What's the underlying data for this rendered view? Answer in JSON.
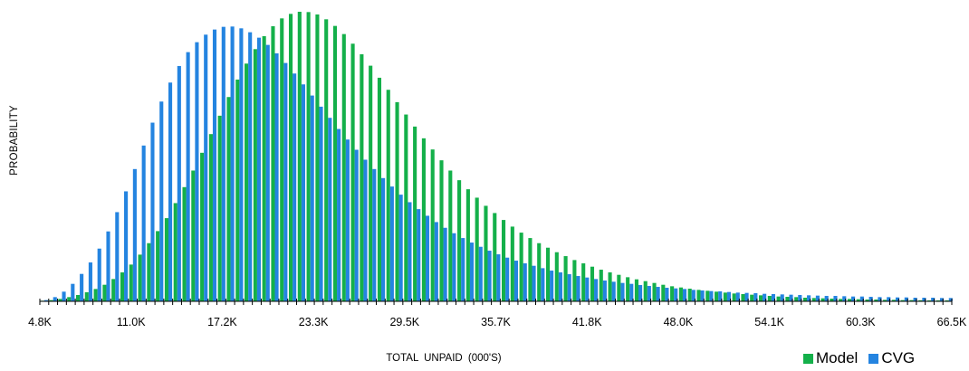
{
  "chart_data": {
    "type": "bar",
    "xlabel": "TOTAL UNPAID (000'S)",
    "ylabel": "PROBABILITY",
    "tick_labels": [
      "4.8K",
      "11.0K",
      "17.2K",
      "23.3K",
      "29.5K",
      "35.7K",
      "41.8K",
      "48.0K",
      "54.1K",
      "60.3K",
      "66.5K"
    ],
    "xlim": [
      4.8,
      66.5
    ],
    "bin_width": 0.6,
    "legend_position": "bottom-right",
    "colors": {
      "model": "#14b04a",
      "cvg": "#2484e0"
    },
    "x": [
      5.1,
      5.7,
      6.3,
      6.9,
      7.5,
      8.1,
      8.7,
      9.3,
      9.9,
      10.5,
      11.1,
      11.7,
      12.3,
      12.9,
      13.5,
      14.1,
      14.7,
      15.3,
      15.9,
      16.5,
      17.1,
      17.7,
      18.3,
      18.9,
      19.5,
      20.1,
      20.7,
      21.3,
      21.9,
      22.5,
      23.1,
      23.7,
      24.3,
      24.9,
      25.5,
      26.1,
      26.7,
      27.3,
      27.9,
      28.5,
      29.1,
      29.7,
      30.3,
      30.9,
      31.5,
      32.1,
      32.7,
      33.3,
      33.9,
      34.5,
      35.1,
      35.7,
      36.3,
      36.9,
      37.5,
      38.1,
      38.7,
      39.3,
      39.9,
      40.5,
      41.1,
      41.7,
      42.3,
      42.9,
      43.5,
      44.1,
      44.7,
      45.3,
      45.9,
      46.5,
      47.1,
      47.7,
      48.3,
      48.9,
      49.5,
      50.1,
      50.7,
      51.3,
      51.9,
      52.5,
      53.1,
      53.7,
      54.3,
      54.9,
      55.5,
      56.1,
      56.7,
      57.3,
      57.9,
      58.5,
      59.1,
      59.7,
      60.3,
      60.9,
      61.5,
      62.1,
      62.7,
      63.3,
      63.9,
      64.5,
      65.1,
      65.7,
      66.3
    ],
    "series": [
      {
        "name": "Model",
        "values": [
          0.2,
          0.4,
          0.8,
          1.4,
          2.1,
          3.0,
          4.1,
          5.5,
          7.4,
          9.6,
          12.2,
          15.5,
          19.3,
          23.3,
          27.6,
          32.6,
          37.9,
          43.4,
          49.3,
          55.5,
          61.6,
          67.8,
          73.6,
          78.9,
          83.7,
          88.0,
          91.3,
          93.9,
          95.4,
          96.1,
          96.0,
          95.2,
          93.6,
          91.4,
          88.7,
          85.5,
          82.0,
          78.2,
          74.2,
          70.2,
          66.1,
          62.0,
          58.0,
          54.1,
          50.4,
          46.8,
          43.4,
          40.2,
          37.2,
          34.4,
          31.7,
          29.3,
          27.0,
          24.8,
          22.8,
          21.0,
          19.3,
          17.8,
          16.3,
          15.0,
          13.7,
          12.6,
          11.5,
          10.5,
          9.6,
          8.8,
          8.0,
          7.3,
          6.7,
          6.1,
          5.5,
          5.0,
          4.6,
          4.2,
          3.8,
          3.5,
          3.2,
          2.9,
          2.6,
          2.4,
          2.2,
          2.0,
          1.8,
          1.6,
          1.5,
          1.4,
          1.2,
          1.1,
          1.0,
          0.9,
          0.8,
          0.8,
          0.7,
          0.6,
          0.6,
          0.5,
          0.5,
          0.4,
          0.4,
          0.35,
          0.3,
          0.3,
          0.3
        ]
      },
      {
        "name": "CVG",
        "values": [
          0.4,
          1.4,
          3.2,
          5.8,
          9.1,
          12.9,
          17.5,
          23.2,
          29.6,
          36.5,
          43.9,
          51.7,
          59.3,
          66.3,
          72.6,
          78.1,
          82.7,
          86.0,
          88.5,
          90.2,
          91.1,
          91.2,
          90.6,
          89.3,
          87.5,
          85.1,
          82.3,
          79.1,
          75.6,
          72.0,
          68.3,
          64.6,
          60.9,
          57.2,
          53.7,
          50.3,
          47.0,
          43.9,
          40.9,
          38.1,
          35.4,
          32.9,
          30.6,
          28.4,
          26.3,
          24.4,
          22.6,
          21.0,
          19.5,
          18.1,
          16.8,
          15.6,
          14.5,
          13.5,
          12.6,
          11.8,
          11.0,
          10.2,
          9.6,
          9.0,
          8.4,
          7.9,
          7.4,
          6.9,
          6.5,
          6.1,
          5.8,
          5.4,
          5.1,
          4.8,
          4.5,
          4.3,
          4.1,
          3.8,
          3.6,
          3.4,
          3.3,
          3.1,
          2.9,
          2.8,
          2.7,
          2.5,
          2.4,
          2.3,
          2.2,
          2.1,
          2.0,
          1.9,
          1.8,
          1.8,
          1.7,
          1.6,
          1.6,
          1.5,
          1.4,
          1.4,
          1.3,
          1.3,
          1.2,
          1.2,
          1.2,
          1.1,
          1.1
        ]
      }
    ]
  }
}
